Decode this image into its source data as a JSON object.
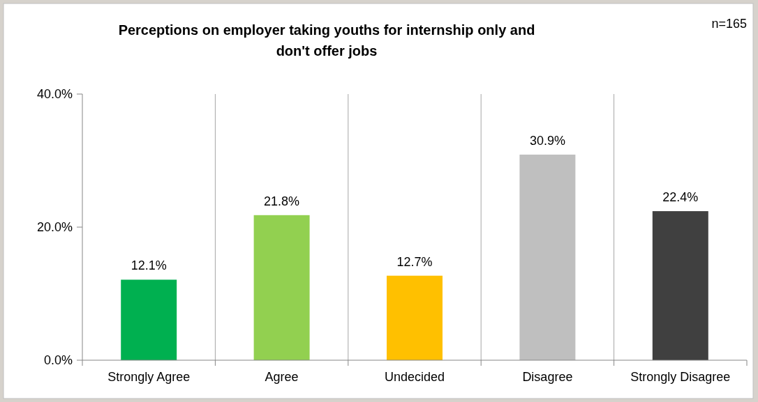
{
  "chart_data": {
    "type": "bar",
    "title": "Perceptions on employer taking youths for internship only and don't offer jobs",
    "annotations": [
      "n=165"
    ],
    "categories": [
      "Strongly Agree",
      "Agree",
      "Undecided",
      "Disagree",
      "Strongly Disagree"
    ],
    "values": [
      12.1,
      21.8,
      12.7,
      30.9,
      22.4
    ],
    "colors": [
      "#00b050",
      "#92d050",
      "#ffc000",
      "#bfbfbf",
      "#404040"
    ],
    "value_labels": [
      "12.1%",
      "21.8%",
      "12.7%",
      "30.9%",
      "22.4%"
    ],
    "ylim": [
      0,
      40
    ],
    "yticks": [
      {
        "value": 0,
        "label": "0.0%"
      },
      {
        "value": 20,
        "label": "20.0%"
      },
      {
        "value": 40,
        "label": "40.0%"
      }
    ],
    "grid": "x"
  }
}
